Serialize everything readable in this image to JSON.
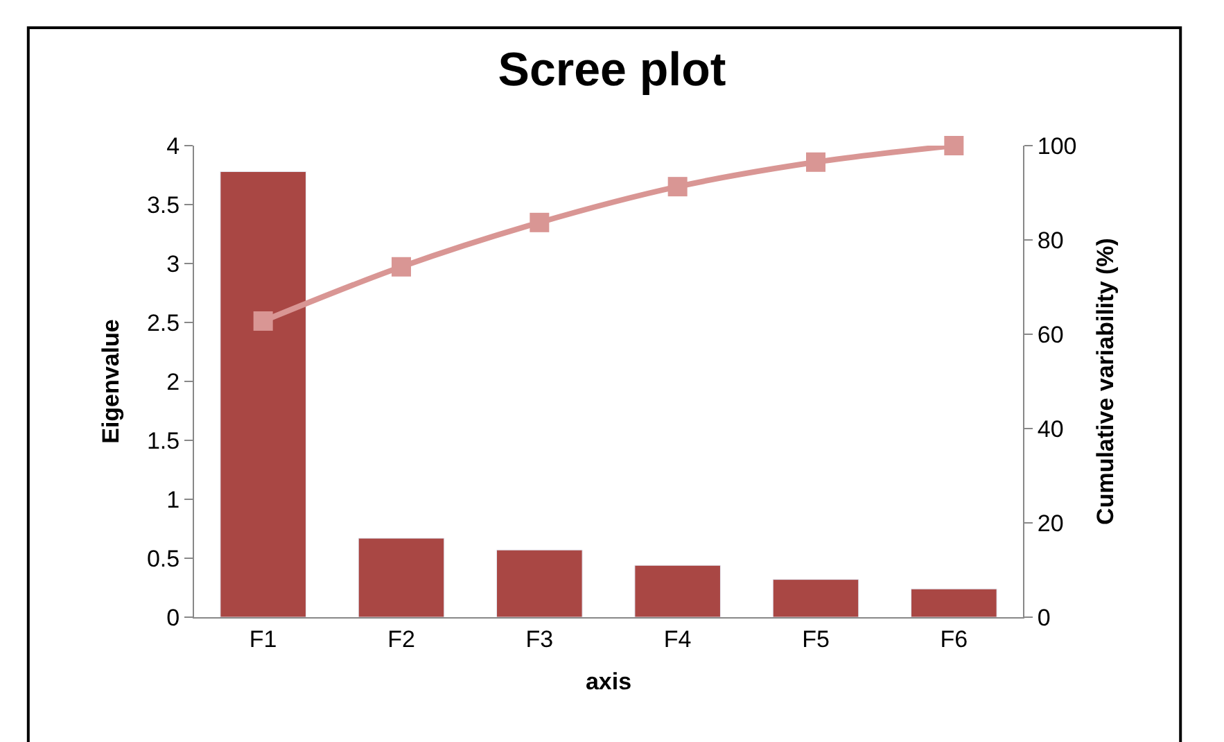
{
  "chart_data": {
    "type": "bar",
    "title": "Scree plot",
    "xlabel": "axis",
    "ylabel": "Eigenvalue",
    "y2label": "Cumulative variability (%)",
    "categories": [
      "F1",
      "F2",
      "F3",
      "F4",
      "F5",
      "F6"
    ],
    "series": [
      {
        "color": "#a94744",
        "values": [
          3.78,
          0.67,
          0.57,
          0.44,
          0.32,
          0.24
        ]
      },
      {
        "type": "line",
        "axis": "y2",
        "color": "#d99694",
        "marker": "square",
        "values": [
          62.8,
          74.3,
          83.7,
          91.3,
          96.5,
          100
        ]
      }
    ],
    "ylim": [
      0,
      4
    ],
    "yticks": [
      0,
      0.5,
      1,
      1.5,
      2,
      2.5,
      3,
      3.5,
      4
    ],
    "y2lim": [
      0,
      100
    ],
    "y2ticks": [
      0,
      20,
      40,
      60,
      80,
      100
    ]
  }
}
